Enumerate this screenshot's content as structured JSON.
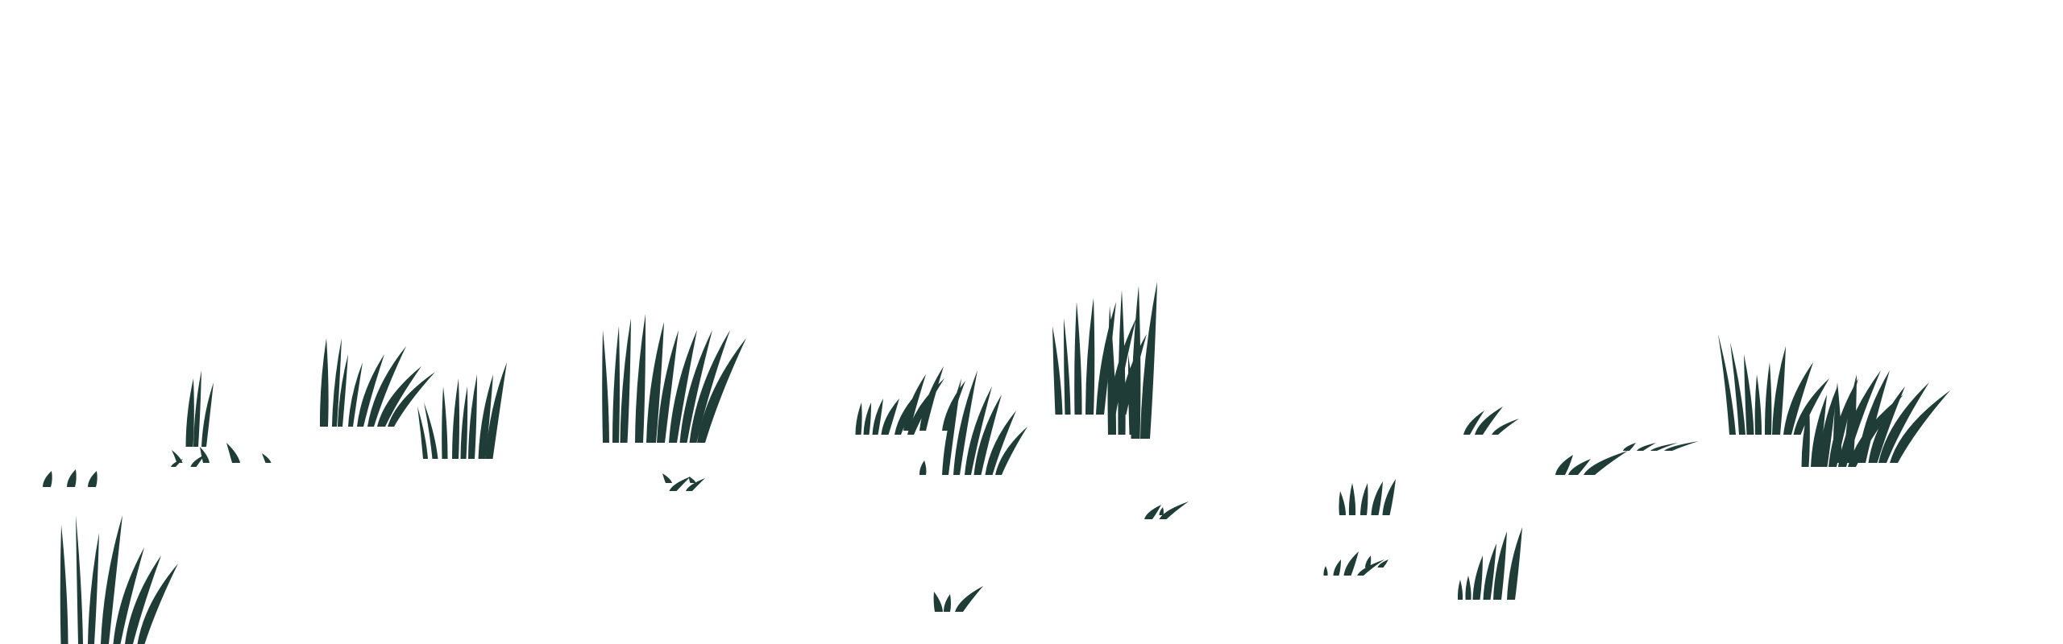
{
  "scene": {
    "background_color": "#ffffff",
    "ink_color": "#1f3d36",
    "subject": "grass-tufts",
    "clumps": [
      {
        "name": "grass-clump-1",
        "icon": "grass-icon"
      },
      {
        "name": "grass-clump-2",
        "icon": "grass-icon"
      },
      {
        "name": "grass-clump-3",
        "icon": "grass-icon"
      },
      {
        "name": "grass-clump-4",
        "icon": "grass-icon"
      },
      {
        "name": "grass-clump-5",
        "icon": "grass-icon"
      },
      {
        "name": "grass-clump-6",
        "icon": "grass-icon"
      },
      {
        "name": "grass-clump-7",
        "icon": "grass-icon"
      },
      {
        "name": "grass-clump-8",
        "icon": "grass-icon"
      },
      {
        "name": "grass-clump-9",
        "icon": "grass-icon"
      },
      {
        "name": "grass-clump-10",
        "icon": "grass-icon"
      },
      {
        "name": "grass-clump-11",
        "icon": "grass-icon"
      },
      {
        "name": "grass-clump-12",
        "icon": "grass-icon"
      },
      {
        "name": "grass-clump-13",
        "icon": "grass-icon"
      },
      {
        "name": "grass-clump-14",
        "icon": "grass-icon"
      },
      {
        "name": "grass-clump-15",
        "icon": "grass-icon"
      },
      {
        "name": "grass-clump-16",
        "icon": "grass-icon"
      },
      {
        "name": "grass-clump-17",
        "icon": "grass-icon"
      },
      {
        "name": "grass-clump-18",
        "icon": "grass-icon"
      },
      {
        "name": "grass-clump-19",
        "icon": "grass-icon"
      },
      {
        "name": "grass-clump-20",
        "icon": "grass-icon"
      },
      {
        "name": "grass-clump-21",
        "icon": "grass-icon"
      },
      {
        "name": "grass-clump-22",
        "icon": "grass-icon"
      },
      {
        "name": "grass-clump-23",
        "icon": "grass-icon"
      },
      {
        "name": "grass-clump-24",
        "icon": "grass-icon"
      },
      {
        "name": "grass-clump-25",
        "icon": "grass-icon"
      },
      {
        "name": "grass-clump-26",
        "icon": "grass-icon"
      },
      {
        "name": "grass-clump-27",
        "icon": "grass-icon"
      },
      {
        "name": "grass-clump-28",
        "icon": "grass-icon"
      },
      {
        "name": "grass-clump-29",
        "icon": "grass-icon"
      },
      {
        "name": "grass-clump-30",
        "icon": "grass-icon"
      }
    ]
  }
}
